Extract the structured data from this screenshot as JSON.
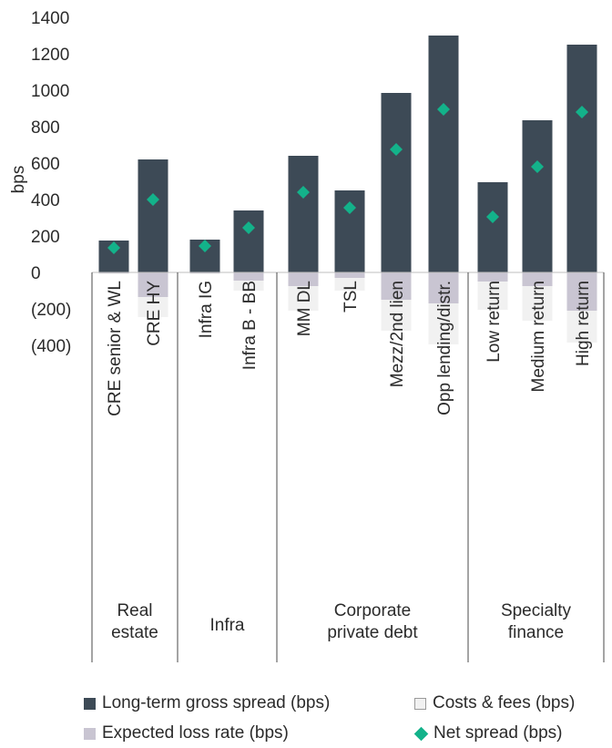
{
  "chart_data": {
    "type": "bar",
    "ylabel": "bps",
    "ylim": [
      -400,
      1400
    ],
    "yticks": [
      1400,
      1200,
      1000,
      800,
      600,
      400,
      200,
      0,
      -200,
      -400
    ],
    "ytick_labels": [
      "1400",
      "1200",
      "1000",
      "800",
      "600",
      "400",
      "200",
      "0",
      "(200)",
      "(400)"
    ],
    "categories": [
      "CRE senior & WL",
      "CRE HY",
      "Infra IG",
      "Infra B - BB",
      "MM DL",
      "TSL",
      "Mezz/2nd lien",
      "Opp lending/distr.",
      "Low return",
      "Medium return",
      "High return"
    ],
    "groups": [
      {
        "label_lines": [
          "Real",
          "estate"
        ],
        "categories": [
          "CRE senior & WL",
          "CRE HY"
        ]
      },
      {
        "label_lines": [
          "Infra"
        ],
        "categories": [
          "Infra IG",
          "Infra B - BB"
        ]
      },
      {
        "label_lines": [
          "Corporate",
          "private debt"
        ],
        "categories": [
          "MM DL",
          "TSL",
          "Mezz/2nd lien",
          "Opp lending/distr."
        ]
      },
      {
        "label_lines": [
          "Specialty",
          "finance"
        ],
        "categories": [
          "Low return",
          "Medium return",
          "High return"
        ]
      }
    ],
    "series": [
      {
        "name": "Long-term gross spread (bps)",
        "kind": "bar",
        "color": "#3d4a56",
        "values": [
          175,
          620,
          180,
          340,
          640,
          450,
          985,
          1300,
          495,
          835,
          1250
        ]
      },
      {
        "name": "Expected loss rate (bps)",
        "kind": "neg_bar",
        "color": "#c9c5d2",
        "values": [
          -5,
          -135,
          -5,
          -45,
          -75,
          -30,
          -150,
          -170,
          -50,
          -75,
          -210
        ]
      },
      {
        "name": "Costs & fees (bps)",
        "kind": "neg_bar_stacked",
        "color": "#f1f1f1",
        "values": [
          -5,
          -110,
          -5,
          -55,
          -135,
          -70,
          -170,
          -225,
          -155,
          -190,
          -175
        ]
      },
      {
        "name": "Net spread (bps)",
        "kind": "marker",
        "color": "#13b28a",
        "values": [
          135,
          400,
          145,
          245,
          440,
          355,
          675,
          895,
          305,
          580,
          880
        ]
      }
    ],
    "legend": [
      {
        "label": "Long-term gross spread (bps)",
        "color": "#3d4a56",
        "shape": "square"
      },
      {
        "label": "Costs & fees (bps)",
        "color": "#f1f1f1",
        "shape": "square"
      },
      {
        "label": "Expected loss rate (bps)",
        "color": "#c9c5d2",
        "shape": "square"
      },
      {
        "label": "Net spread (bps)",
        "color": "#13b28a",
        "shape": "diamond"
      }
    ],
    "legend_position": "bottom",
    "grid": false
  }
}
